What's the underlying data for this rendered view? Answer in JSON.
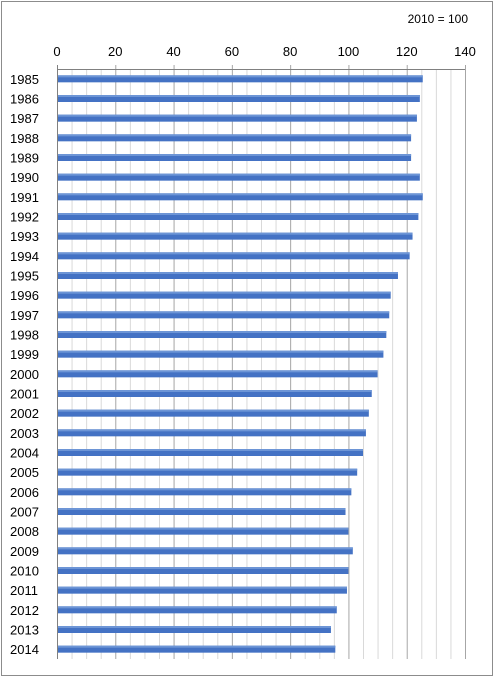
{
  "chart_data": {
    "type": "bar",
    "orientation": "horizontal",
    "title": "",
    "annotation": "2010 = 100",
    "xlabel": "",
    "ylabel": "",
    "xlim": [
      0,
      140
    ],
    "x_ticks": [
      0,
      20,
      40,
      60,
      80,
      100,
      120,
      140
    ],
    "x_axis_position": "top",
    "grid": true,
    "legend": "none",
    "bar_color": "#4472C4",
    "categories": [
      "1985",
      "1986",
      "1987",
      "1988",
      "1989",
      "1990",
      "1991",
      "1992",
      "1993",
      "1994",
      "1995",
      "1996",
      "1997",
      "1998",
      "1999",
      "2000",
      "2001",
      "2002",
      "2003",
      "2004",
      "2005",
      "2006",
      "2007",
      "2008",
      "2009",
      "2010",
      "2011",
      "2012",
      "2013",
      "2014"
    ],
    "values": [
      125.5,
      124.5,
      123.5,
      121.5,
      121.5,
      124.5,
      125.5,
      124.0,
      122.0,
      121.0,
      117.0,
      114.5,
      114.0,
      113.0,
      112.0,
      110.0,
      108.0,
      107.0,
      106.0,
      105.0,
      103.0,
      101.0,
      99.0,
      100.0,
      101.5,
      100.0,
      99.5,
      96.0,
      94.0,
      95.5
    ]
  }
}
